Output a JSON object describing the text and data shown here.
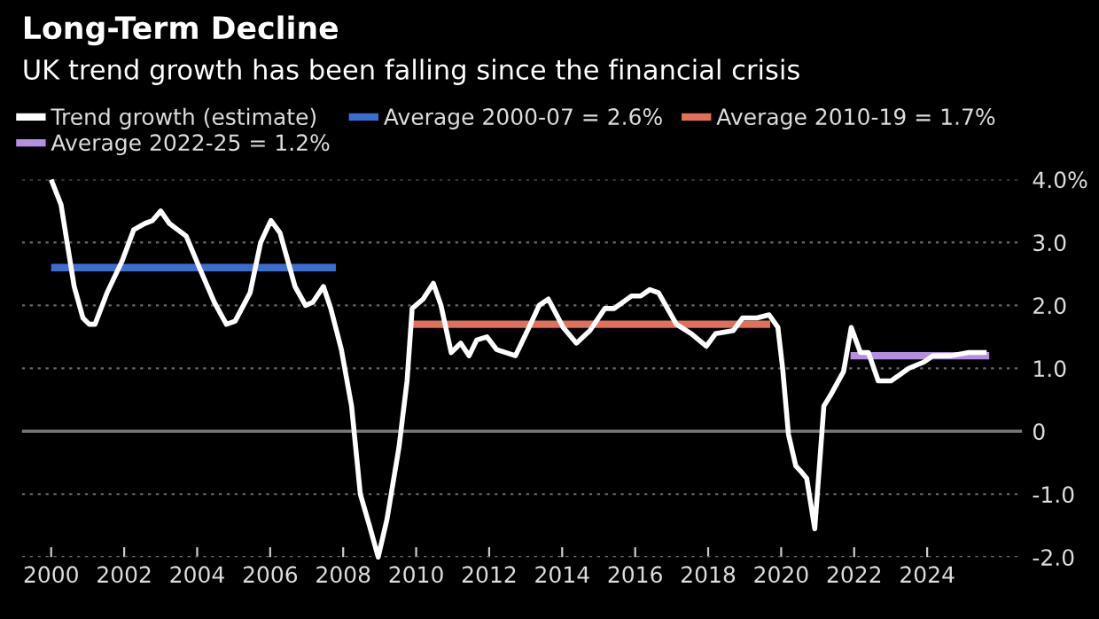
{
  "chart_data": {
    "type": "line",
    "title": "Long-Term Decline",
    "subtitle": "UK trend growth has been falling since the financial crisis",
    "series": [
      {
        "name": "Trend growth (estimate)",
        "color": "#ffffff",
        "x": [
          2000.0,
          2000.27,
          2000.63,
          2000.87,
          2001.04,
          2001.2,
          2001.53,
          2001.94,
          2002.26,
          2002.56,
          2002.78,
          2003.0,
          2003.24,
          2003.7,
          2004.06,
          2004.47,
          2004.8,
          2005.04,
          2005.45,
          2005.74,
          2006.02,
          2006.27,
          2006.68,
          2006.97,
          2007.17,
          2007.46,
          2007.66,
          2007.95,
          2008.23,
          2008.47,
          2008.72,
          2008.96,
          2009.2,
          2009.53,
          2009.75,
          2009.89,
          2010.19,
          2010.47,
          2010.68,
          2010.96,
          2011.22,
          2011.45,
          2011.66,
          2011.94,
          2012.2,
          2012.72,
          2013.05,
          2013.37,
          2013.62,
          2014.03,
          2014.39,
          2014.76,
          2015.17,
          2015.42,
          2015.9,
          2016.15,
          2016.4,
          2016.64,
          2017.13,
          2017.54,
          2017.95,
          2018.2,
          2018.69,
          2018.94,
          2019.34,
          2019.67,
          2019.91,
          2020.04,
          2020.2,
          2020.4,
          2020.56,
          2020.7,
          2020.92,
          2021.17,
          2021.38,
          2021.71,
          2021.92,
          2022.17,
          2022.39,
          2022.66,
          2023.01,
          2023.5,
          2023.91,
          2024.16,
          2024.65,
          2025.14,
          2025.63
        ],
        "values": [
          4.0,
          3.6,
          2.3,
          1.8,
          1.7,
          1.7,
          2.2,
          2.7,
          3.2,
          3.3,
          3.35,
          3.5,
          3.3,
          3.1,
          2.6,
          2.05,
          1.7,
          1.75,
          2.2,
          3.0,
          3.35,
          3.15,
          2.3,
          2.0,
          2.05,
          2.3,
          1.95,
          1.3,
          0.4,
          -1.0,
          -1.5,
          -2.0,
          -1.4,
          -0.25,
          0.8,
          1.95,
          2.1,
          2.35,
          2.0,
          1.25,
          1.4,
          1.2,
          1.45,
          1.5,
          1.3,
          1.2,
          1.6,
          2.0,
          2.1,
          1.65,
          1.4,
          1.6,
          1.95,
          1.95,
          2.15,
          2.15,
          2.25,
          2.2,
          1.7,
          1.55,
          1.35,
          1.55,
          1.6,
          1.8,
          1.8,
          1.85,
          1.65,
          1.0,
          -0.05,
          -0.55,
          -0.65,
          -0.75,
          -1.55,
          0.4,
          0.6,
          0.95,
          1.65,
          1.25,
          1.25,
          0.8,
          0.8,
          1.0,
          1.1,
          1.2,
          1.2,
          1.25,
          1.25
        ]
      },
      {
        "name": "Average 2000-07 = 2.6%",
        "color": "#3a6fd0",
        "x": [
          2000.0,
          2007.8
        ],
        "values": [
          2.6,
          2.6
        ]
      },
      {
        "name": "Average 2010-19 = 1.7%",
        "color": "#e0705a",
        "x": [
          2009.9,
          2019.7
        ],
        "values": [
          1.7,
          1.7
        ]
      },
      {
        "name": "Average 2022-25 = 1.2%",
        "color": "#b48ee0",
        "x": [
          2021.9,
          2025.7
        ],
        "values": [
          1.2,
          1.2
        ]
      }
    ],
    "xlim": [
      1999.2,
      2026.6
    ],
    "xticks": [
      {
        "value": 2000,
        "label": "2000"
      },
      {
        "value": 2002,
        "label": "2002"
      },
      {
        "value": 2004,
        "label": "2004"
      },
      {
        "value": 2006,
        "label": "2006"
      },
      {
        "value": 2008,
        "label": "2008"
      },
      {
        "value": 2010,
        "label": "2010"
      },
      {
        "value": 2012,
        "label": "2012"
      },
      {
        "value": 2014,
        "label": "2014"
      },
      {
        "value": 2016,
        "label": "2016"
      },
      {
        "value": 2018,
        "label": "2018"
      },
      {
        "value": 2020,
        "label": "2020"
      },
      {
        "value": 2022,
        "label": "2022"
      },
      {
        "value": 2024,
        "label": "2024"
      }
    ],
    "ylim": [
      -2,
      4
    ],
    "yticks": [
      {
        "value": 4,
        "label": "4.0%"
      },
      {
        "value": 3,
        "label": "3.0"
      },
      {
        "value": 2,
        "label": "2.0"
      },
      {
        "value": 1,
        "label": "1.0"
      },
      0,
      {
        "value": -1,
        "label": "-1.0"
      },
      {
        "value": -2,
        "label": "-2.0"
      }
    ],
    "ref_lines": [
      {
        "axis": "y",
        "value": 0,
        "color": "#777777"
      }
    ],
    "grid": "y",
    "legend": "top",
    "line_style": "solid",
    "marker": "none"
  }
}
